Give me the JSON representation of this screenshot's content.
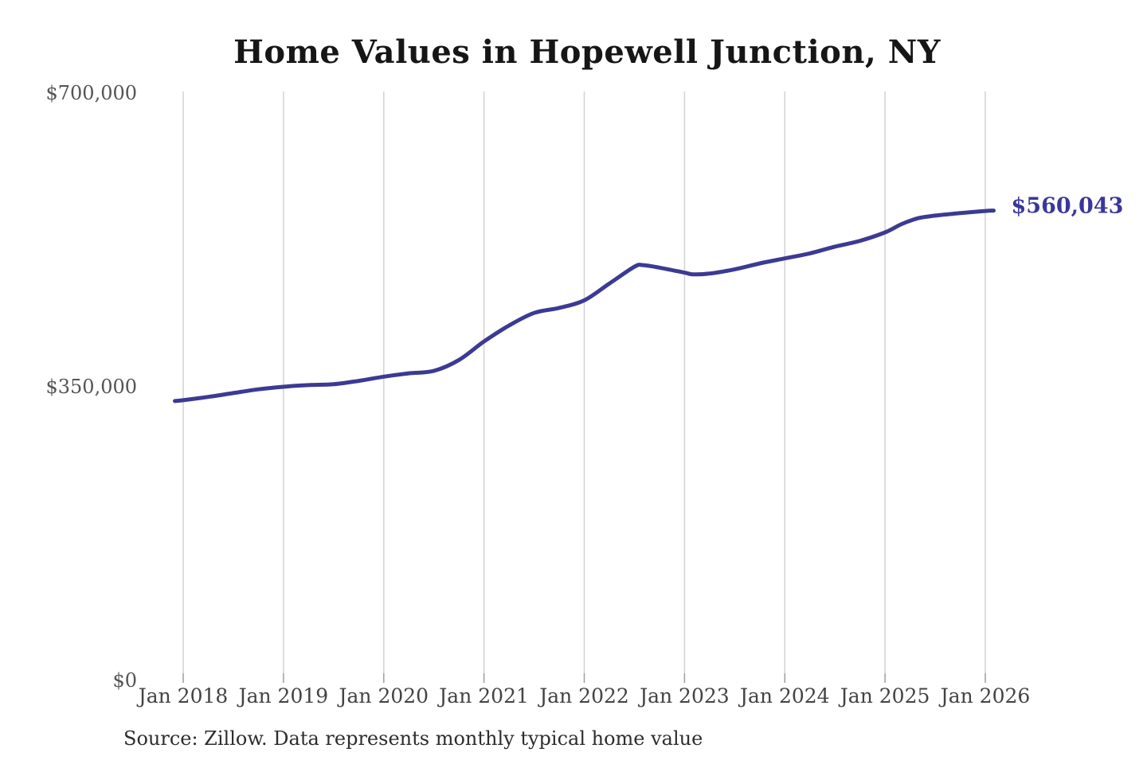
{
  "chart_data": {
    "type": "line",
    "title": "Home Values in Hopewell Junction, NY",
    "source_note": "Source: Zillow. Data represents monthly typical home value",
    "end_label": "$560,043",
    "end_value": 560043,
    "ylim": [
      0,
      700000
    ],
    "x_range_years": [
      2018,
      2026
    ],
    "grid": "vertical-only",
    "legend": "none",
    "y_ticks": [
      {
        "value": 0,
        "label": "$0"
      },
      {
        "value": 350000,
        "label": "$350,000"
      },
      {
        "value": 700000,
        "label": "$700,000"
      }
    ],
    "x_ticks": [
      {
        "year": 2018,
        "label": "Jan 2018"
      },
      {
        "year": 2019,
        "label": "Jan 2019"
      },
      {
        "year": 2020,
        "label": "Jan 2020"
      },
      {
        "year": 2021,
        "label": "Jan 2021"
      },
      {
        "year": 2022,
        "label": "Jan 2022"
      },
      {
        "year": 2023,
        "label": "Jan 2023"
      },
      {
        "year": 2024,
        "label": "Jan 2024"
      },
      {
        "year": 2025,
        "label": "Jan 2025"
      },
      {
        "year": 2026,
        "label": "Jan 2026"
      }
    ],
    "series": [
      {
        "name": "Monthly typical home value",
        "color": "#3b3a94",
        "points": [
          {
            "date": "2017-12",
            "value": 333000
          },
          {
            "date": "2018-01",
            "value": 334000
          },
          {
            "date": "2018-04",
            "value": 338000
          },
          {
            "date": "2018-07",
            "value": 342500
          },
          {
            "date": "2018-10",
            "value": 347000
          },
          {
            "date": "2019-01",
            "value": 350000
          },
          {
            "date": "2019-04",
            "value": 352000
          },
          {
            "date": "2019-07",
            "value": 353000
          },
          {
            "date": "2019-10",
            "value": 357000
          },
          {
            "date": "2020-01",
            "value": 362000
          },
          {
            "date": "2020-04",
            "value": 366000
          },
          {
            "date": "2020-07",
            "value": 369000
          },
          {
            "date": "2020-10",
            "value": 382000
          },
          {
            "date": "2021-01",
            "value": 404000
          },
          {
            "date": "2021-04",
            "value": 423000
          },
          {
            "date": "2021-07",
            "value": 438000
          },
          {
            "date": "2021-10",
            "value": 444000
          },
          {
            "date": "2022-01",
            "value": 453000
          },
          {
            "date": "2022-04",
            "value": 473000
          },
          {
            "date": "2022-07",
            "value": 493000
          },
          {
            "date": "2022-08",
            "value": 495000
          },
          {
            "date": "2022-10",
            "value": 492000
          },
          {
            "date": "2023-01",
            "value": 486000
          },
          {
            "date": "2023-02",
            "value": 484000
          },
          {
            "date": "2023-04",
            "value": 485000
          },
          {
            "date": "2023-07",
            "value": 490000
          },
          {
            "date": "2023-10",
            "value": 497000
          },
          {
            "date": "2024-01",
            "value": 503000
          },
          {
            "date": "2024-04",
            "value": 509000
          },
          {
            "date": "2024-07",
            "value": 517000
          },
          {
            "date": "2024-10",
            "value": 524000
          },
          {
            "date": "2025-01",
            "value": 534000
          },
          {
            "date": "2025-03",
            "value": 544000
          },
          {
            "date": "2025-05",
            "value": 551000
          },
          {
            "date": "2025-07",
            "value": 554000
          },
          {
            "date": "2025-10",
            "value": 557000
          },
          {
            "date": "2026-01",
            "value": 559500
          },
          {
            "date": "2026-02",
            "value": 560043
          }
        ]
      }
    ],
    "colors": {
      "line": "#3b3a94",
      "end_label": "#39379b",
      "grid": "#d2d2d2",
      "tick": "#9e9e9e",
      "title_text": "#161616",
      "y_axis_text": "#545454",
      "x_axis_text": "#434343",
      "source_text": "#2d2d2d",
      "background": "#ffffff"
    }
  }
}
